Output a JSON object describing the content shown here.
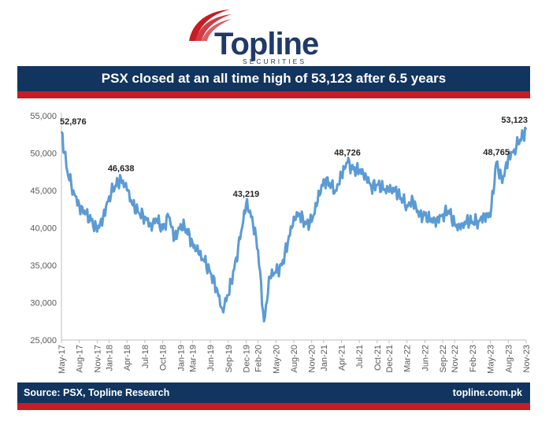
{
  "brand": {
    "name": "Topline",
    "subtitle": "SECURITIES",
    "primary_color": "#1f3a68",
    "accent_color": "#c81b23"
  },
  "header": {
    "title": "PSX closed at an all time high of 53,123 after 6.5 years",
    "band_color": "#12355f"
  },
  "footer": {
    "source": "Source: PSX, Topline Research",
    "website": "topline.com.pk"
  },
  "chart_data": {
    "type": "line",
    "title": "PSX closed at an all time high of 53,123 after 6.5 years",
    "xlabel": "",
    "ylabel": "",
    "ylim": [
      25000,
      55000
    ],
    "yticks": [
      25000,
      30000,
      35000,
      40000,
      45000,
      50000,
      55000
    ],
    "ytick_labels": [
      "25,000",
      "30,000",
      "35,000",
      "40,000",
      "45,000",
      "50,000",
      "55,000"
    ],
    "xticks": [
      "May-17",
      "Aug-17",
      "Nov-17",
      "Jan-18",
      "Apr-18",
      "Jul-18",
      "Oct-18",
      "Jan-19",
      "Mar-19",
      "Jun-19",
      "Sep-19",
      "Dec-19",
      "Feb-20",
      "May-20",
      "Aug-20",
      "Nov-20",
      "Jan-21",
      "Apr-21",
      "Jul-21",
      "Oct-21",
      "Dec-21",
      "Mar-22",
      "Jun-22",
      "Sep-22",
      "Nov-22",
      "Feb-23",
      "May-23",
      "Aug-23",
      "Nov-23"
    ],
    "grid": false,
    "line_color": "#5b9bd5",
    "series": [
      {
        "x": [
          "May-17",
          "Jun-17",
          "Jul-17",
          "Aug-17",
          "Sep-17",
          "Oct-17",
          "Nov-17",
          "Dec-17",
          "Jan-18",
          "Feb-18",
          "Mar-18",
          "Apr-18",
          "May-18",
          "Jun-18",
          "Jul-18",
          "Aug-18",
          "Sep-18",
          "Oct-18",
          "Nov-18",
          "Dec-18",
          "Jan-19",
          "Feb-19",
          "Mar-19",
          "Apr-19",
          "May-19",
          "Jun-19",
          "Jul-19",
          "Aug-19",
          "Sep-19",
          "Oct-19",
          "Nov-19",
          "Dec-19",
          "Jan-20",
          "Feb-20",
          "Mar-20",
          "Apr-20",
          "May-20",
          "Jun-20",
          "Jul-20",
          "Aug-20",
          "Sep-20",
          "Oct-20",
          "Nov-20",
          "Dec-20",
          "Jan-21",
          "Feb-21",
          "Mar-21",
          "Apr-21",
          "May-21",
          "Jun-21",
          "Jul-21",
          "Aug-21",
          "Sep-21",
          "Oct-21",
          "Nov-21",
          "Dec-21",
          "Jan-22",
          "Feb-22",
          "Mar-22",
          "Apr-22",
          "May-22",
          "Jun-22",
          "Jul-22",
          "Aug-22",
          "Sep-22",
          "Oct-22",
          "Nov-22",
          "Dec-22",
          "Jan-23",
          "Feb-23",
          "Mar-23",
          "Apr-23",
          "May-23",
          "Jun-23",
          "Jul-23",
          "Aug-23",
          "Sep-23",
          "Oct-23",
          "Nov-23"
        ],
        "values": [
          52876,
          47500,
          45000,
          43000,
          41800,
          41000,
          39500,
          41500,
          44200,
          45600,
          46638,
          45000,
          43000,
          42000,
          41500,
          40500,
          41000,
          39800,
          41500,
          38500,
          40500,
          39800,
          38000,
          36500,
          35500,
          34000,
          32000,
          29200,
          31000,
          34500,
          38500,
          43219,
          41500,
          37000,
          27500,
          33500,
          34000,
          35000,
          38000,
          41500,
          41800,
          40500,
          40800,
          43500,
          46500,
          46000,
          45000,
          47000,
          48726,
          47800,
          47500,
          47300,
          45500,
          45800,
          45200,
          44800,
          45300,
          44000,
          43000,
          43800,
          41500,
          41700,
          40800,
          41200,
          41800,
          42300,
          40500,
          39800,
          41000,
          40800,
          40900,
          41800,
          41500,
          48765,
          46000,
          49500,
          50500,
          51800,
          53123
        ]
      }
    ],
    "annotations": [
      {
        "label": "52,876",
        "x": "May-17",
        "y": 52876
      },
      {
        "label": "46,638",
        "x": "Mar-18",
        "y": 46638
      },
      {
        "label": "43,219",
        "x": "Dec-19",
        "y": 43219
      },
      {
        "label": "48,726",
        "x": "May-21",
        "y": 48726
      },
      {
        "label": "48,765",
        "x": "Jun-23",
        "y": 48765
      },
      {
        "label": "53,123",
        "x": "Nov-23",
        "y": 53123
      }
    ]
  }
}
